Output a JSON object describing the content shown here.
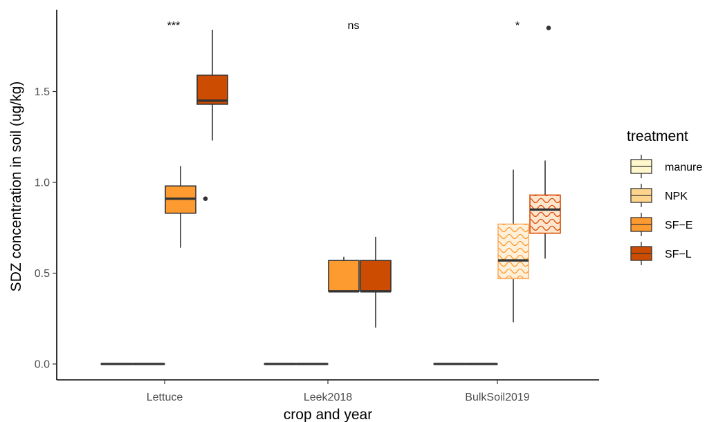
{
  "chart_data": {
    "type": "box",
    "xlabel": "crop and year",
    "ylabel": "SDZ concentration in soil (ug/kg)",
    "ylim": [
      -0.06,
      1.97
    ],
    "yticks": [
      "0.0",
      "0.5",
      "1.0",
      "1.5"
    ],
    "yticks_values": [
      0.0,
      0.5,
      1.0,
      1.5
    ],
    "categories": [
      "Lettuce",
      "Leek2018",
      "BulkSoil2019"
    ],
    "significance": [
      "***",
      "ns",
      "*"
    ],
    "grid": false,
    "legend": {
      "title": "treatment",
      "placement": "right",
      "entries": [
        {
          "label": "manure",
          "fill": "#FEF7CC",
          "stroke": "#333333",
          "pattern": false
        },
        {
          "label": "NPK",
          "fill": "#FED48C",
          "stroke": "#333333",
          "pattern": false
        },
        {
          "label": "SF−E",
          "fill": "#FD9A30",
          "stroke": "#333333",
          "pattern": false
        },
        {
          "label": "SF−L",
          "fill": "#CC4C02",
          "stroke": "#333333",
          "pattern": false
        }
      ]
    },
    "boxes": [
      {
        "category": "Lettuce",
        "treatment": "manure",
        "min": 0,
        "q1": 0,
        "median": 0,
        "q3": 0,
        "max": 0,
        "outliers": []
      },
      {
        "category": "Lettuce",
        "treatment": "NPK",
        "min": 0,
        "q1": 0,
        "median": 0,
        "q3": 0,
        "max": 0,
        "outliers": []
      },
      {
        "category": "Lettuce",
        "treatment": "SF−E",
        "min": 0.64,
        "q1": 0.83,
        "median": 0.91,
        "q3": 0.98,
        "max": 1.09,
        "outliers": [
          0.91
        ]
      },
      {
        "category": "Lettuce",
        "treatment": "SF−L",
        "min": 1.23,
        "q1": 1.43,
        "median": 1.45,
        "q3": 1.59,
        "max": 1.84,
        "outliers": []
      },
      {
        "category": "Leek2018",
        "treatment": "manure",
        "min": 0,
        "q1": 0,
        "median": 0,
        "q3": 0,
        "max": 0,
        "outliers": []
      },
      {
        "category": "Leek2018",
        "treatment": "NPK",
        "min": 0,
        "q1": 0,
        "median": 0,
        "q3": 0,
        "max": 0,
        "outliers": []
      },
      {
        "category": "Leek2018",
        "treatment": "SF−E",
        "min": 0.4,
        "q1": 0.4,
        "median": 0.4,
        "q3": 0.57,
        "max": 0.59,
        "outliers": []
      },
      {
        "category": "Leek2018",
        "treatment": "SF−L",
        "min": 0.2,
        "q1": 0.4,
        "median": 0.4,
        "q3": 0.57,
        "max": 0.7,
        "outliers": []
      },
      {
        "category": "BulkSoil2019",
        "treatment": "manure",
        "min": 0,
        "q1": 0,
        "median": 0,
        "q3": 0,
        "max": 0,
        "outliers": []
      },
      {
        "category": "BulkSoil2019",
        "treatment": "NPK",
        "min": 0,
        "q1": 0,
        "median": 0,
        "q3": 0,
        "max": 0,
        "outliers": []
      },
      {
        "category": "BulkSoil2019",
        "treatment": "SF−E",
        "min": 0.23,
        "q1": 0.47,
        "median": 0.57,
        "q3": 0.77,
        "max": 1.07,
        "outliers": [],
        "fill": "#FEF0D9",
        "stroke": "#FDAE6B",
        "pattern": true,
        "pattern_color": "#FD9A30"
      },
      {
        "category": "BulkSoil2019",
        "treatment": "SF−L",
        "min": 0.58,
        "q1": 0.72,
        "median": 0.85,
        "q3": 0.93,
        "max": 1.12,
        "outliers": [
          1.85
        ],
        "fill": "#FEE6CE",
        "stroke": "#D94801",
        "pattern": true,
        "pattern_color": "#D94801"
      }
    ]
  }
}
